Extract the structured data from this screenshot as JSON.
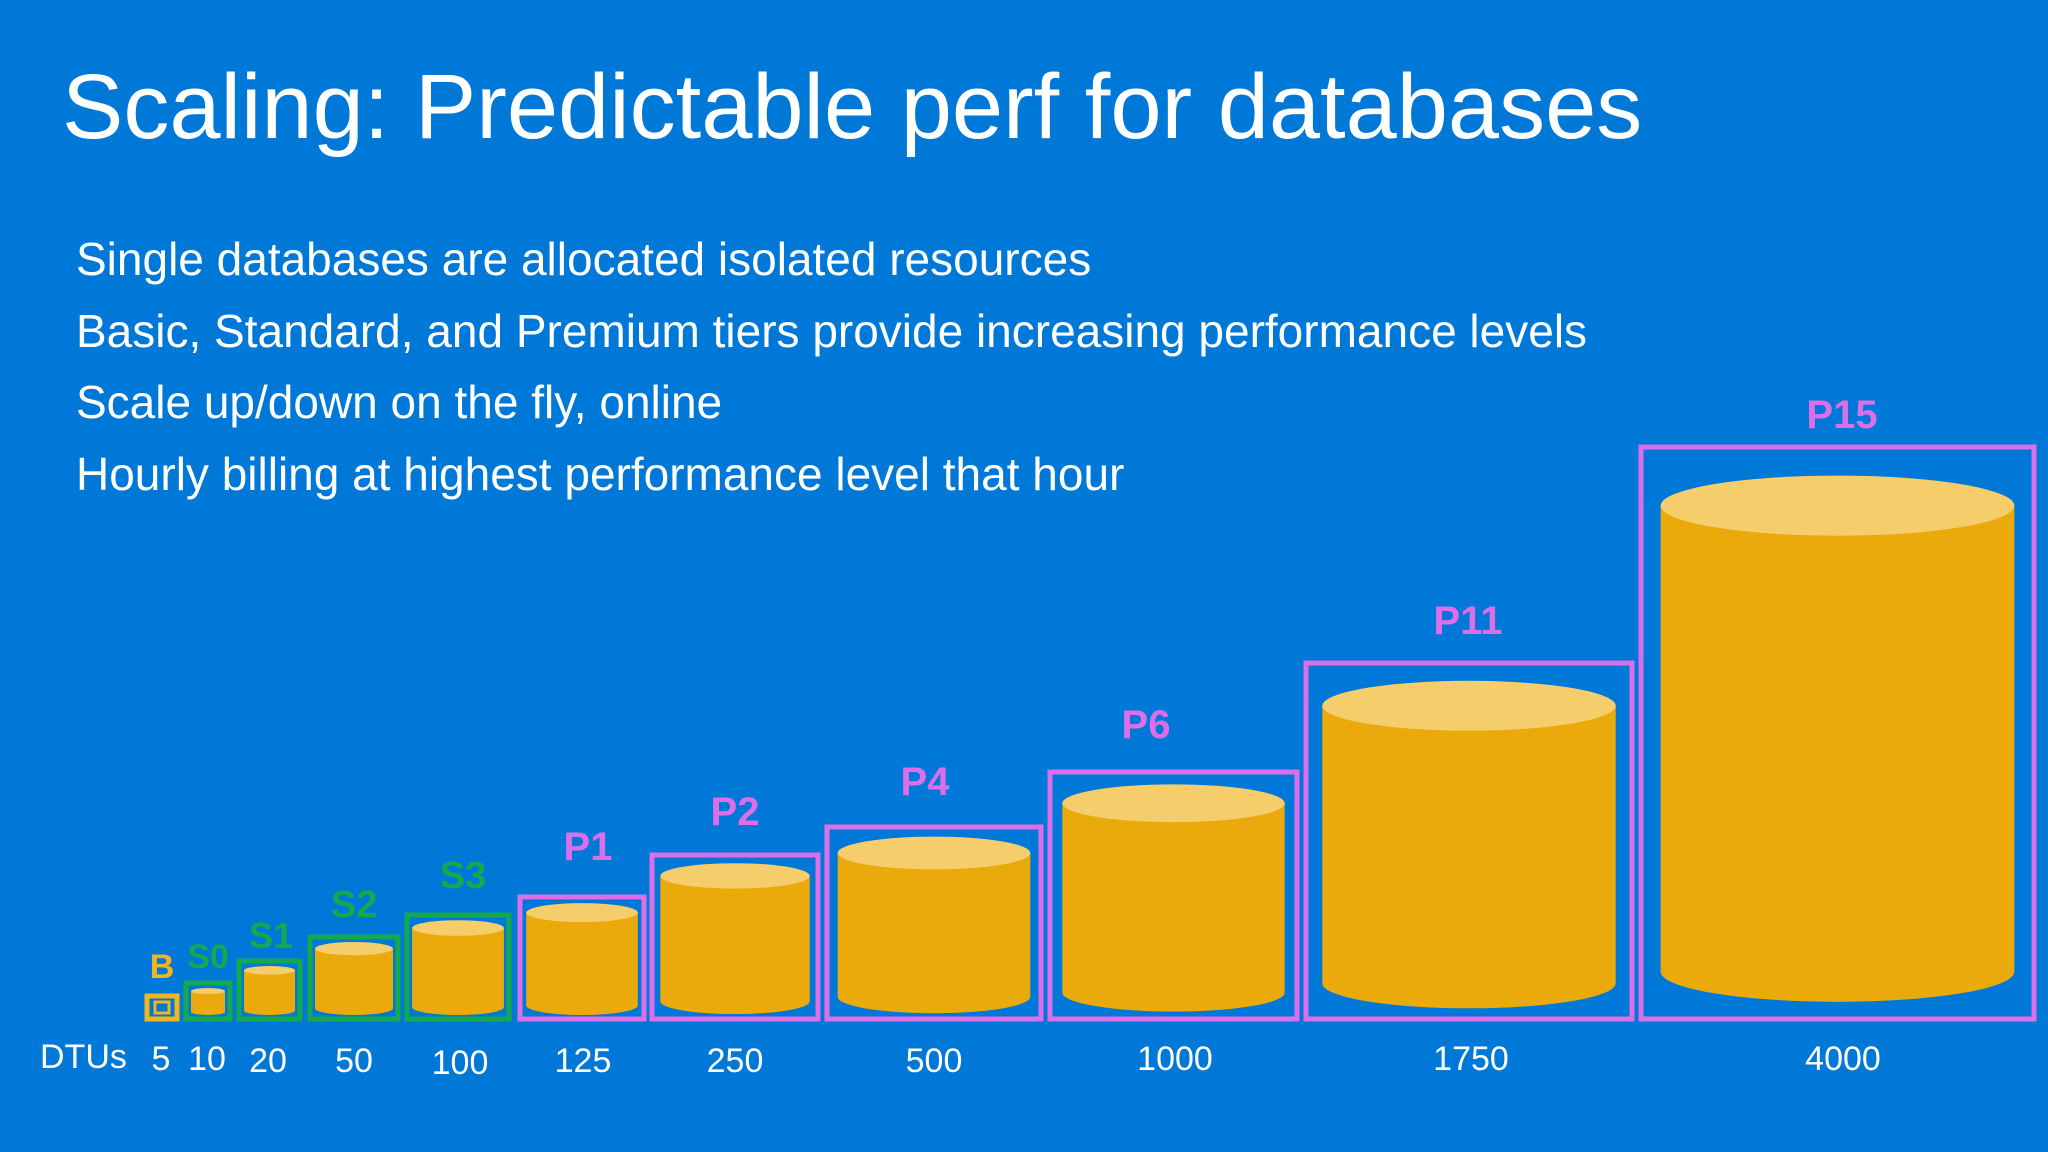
{
  "title": "Scaling: Predictable perf for databases",
  "bullets": [
    "Single databases are allocated isolated resources",
    "Basic, Standard, and Premium tiers provide increasing performance levels",
    "Scale up/down on the fly, online",
    "Hourly billing at highest performance level that hour"
  ],
  "dtu_axis_label": "DTUs",
  "colors": {
    "background": "#0078d7",
    "cylinder_body": "#eaaa0c",
    "cylinder_top": "#f5cd6a",
    "basic": "#f2b51f",
    "standard": "#14a84f",
    "premium": "#dc6fe8"
  },
  "tiers": [
    {
      "name": "B",
      "dtu": "5",
      "tier": "basic"
    },
    {
      "name": "S0",
      "dtu": "10",
      "tier": "standard"
    },
    {
      "name": "S1",
      "dtu": "20",
      "tier": "standard"
    },
    {
      "name": "S2",
      "dtu": "50",
      "tier": "standard"
    },
    {
      "name": "S3",
      "dtu": "100",
      "tier": "standard"
    },
    {
      "name": "P1",
      "dtu": "125",
      "tier": "premium"
    },
    {
      "name": "P2",
      "dtu": "250",
      "tier": "premium"
    },
    {
      "name": "P4",
      "dtu": "500",
      "tier": "premium"
    },
    {
      "name": "P6",
      "dtu": "1000",
      "tier": "premium"
    },
    {
      "name": "P11",
      "dtu": "1750",
      "tier": "premium"
    },
    {
      "name": "P15",
      "dtu": "4000",
      "tier": "premium"
    }
  ]
}
